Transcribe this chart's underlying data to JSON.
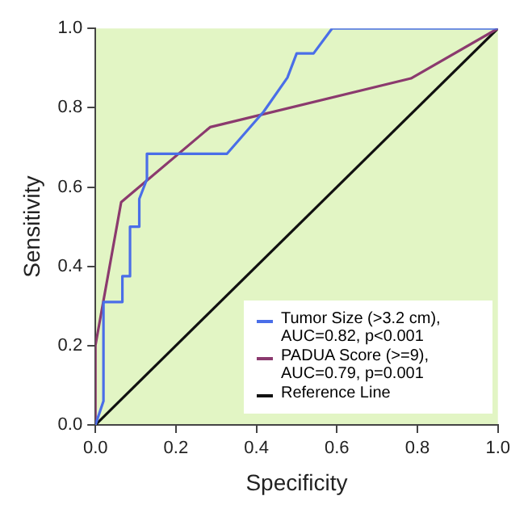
{
  "chart_data": {
    "type": "line",
    "xlabel": "Specificity",
    "ylabel": "Sensitivity",
    "xlim": [
      0,
      1
    ],
    "ylim": [
      0,
      1
    ],
    "xticks": [
      {
        "value": 0,
        "label": "0.0"
      },
      {
        "value": 0.2,
        "label": "0.2"
      },
      {
        "value": 0.4,
        "label": "0.4"
      },
      {
        "value": 0.6,
        "label": "0.6"
      },
      {
        "value": 0.8,
        "label": "0.8"
      },
      {
        "value": 1,
        "label": "1.0"
      }
    ],
    "yticks": [
      {
        "value": 0,
        "label": "0.0"
      },
      {
        "value": 0.2,
        "label": "0.2"
      },
      {
        "value": 0.4,
        "label": "0.4"
      },
      {
        "value": 0.6,
        "label": "0.6"
      },
      {
        "value": 0.8,
        "label": "0.8"
      },
      {
        "value": 1,
        "label": "1.0"
      }
    ],
    "grid": false,
    "legend": "bottom right",
    "marker": "none",
    "line_style": "solid",
    "series": [
      {
        "name": "Tumor Size (>3.2 cm), AUC=0.82, p<0.001",
        "color": "#4a6ee8",
        "x": [
          0,
          0.02,
          0.02,
          0.067,
          0.067,
          0.086,
          0.086,
          0.109,
          0.109,
          0.128,
          0.128,
          0.327,
          0.418,
          0.477,
          0.5,
          0.542,
          0.588,
          1
        ],
        "values": [
          0,
          0.06,
          0.31,
          0.31,
          0.375,
          0.375,
          0.5,
          0.5,
          0.57,
          0.62,
          0.684,
          0.684,
          0.79,
          0.876,
          0.937,
          0.937,
          1,
          1
        ]
      },
      {
        "name": "PADUA Score (>=9), AUC=0.79, p=0.001",
        "color": "#8b3a6e",
        "x": [
          0,
          0,
          0.064,
          0.285,
          0.784,
          1
        ],
        "values": [
          0,
          0.2,
          0.562,
          0.751,
          0.874,
          1
        ]
      },
      {
        "name": "Reference Line",
        "color": "#111111",
        "x": [
          0,
          1
        ],
        "values": [
          0,
          1
        ]
      }
    ]
  }
}
